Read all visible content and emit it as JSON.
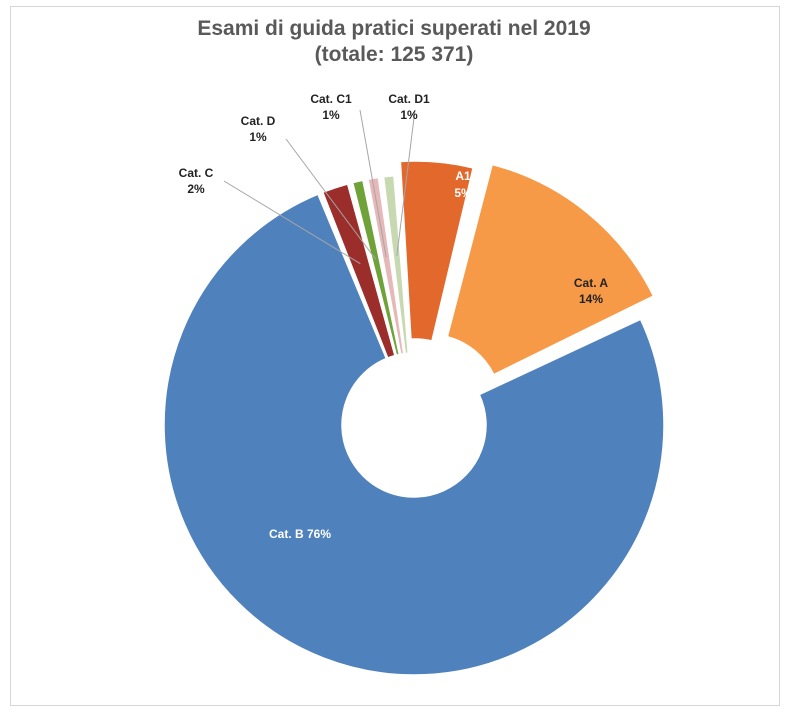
{
  "chart_data": {
    "type": "pie",
    "title": "Esami di guida pratici superati nel 2019",
    "subtitle": "(totale: 125 371)",
    "slices": [
      {
        "label": "Cat. A1",
        "percent_label": "5%",
        "value": 5,
        "color": "#e3682c",
        "text_color": "#ffffff"
      },
      {
        "label": "Cat. A",
        "percent_label": "14%",
        "value": 14,
        "color": "#f79a47",
        "text_color": "#222222"
      },
      {
        "label": "Cat. B",
        "percent_label": "76%",
        "value": 76,
        "color": "#4f81bd",
        "text_color": "#ffffff"
      },
      {
        "label": "Cat. C",
        "percent_label": "2%",
        "value": 2,
        "color": "#9b2d2a",
        "text_color": "#222222"
      },
      {
        "label": "Cat. D",
        "percent_label": "1%",
        "value": 1,
        "color": "#70a23a",
        "text_color": "#222222"
      },
      {
        "label": "Cat. C1",
        "percent_label": "1%",
        "value": 1,
        "color": "#e6b8b8",
        "text_color": "#222222"
      },
      {
        "label": "Cat. D1",
        "percent_label": "1%",
        "value": 1,
        "color": "#c7d9b0",
        "text_color": "#222222"
      }
    ]
  }
}
